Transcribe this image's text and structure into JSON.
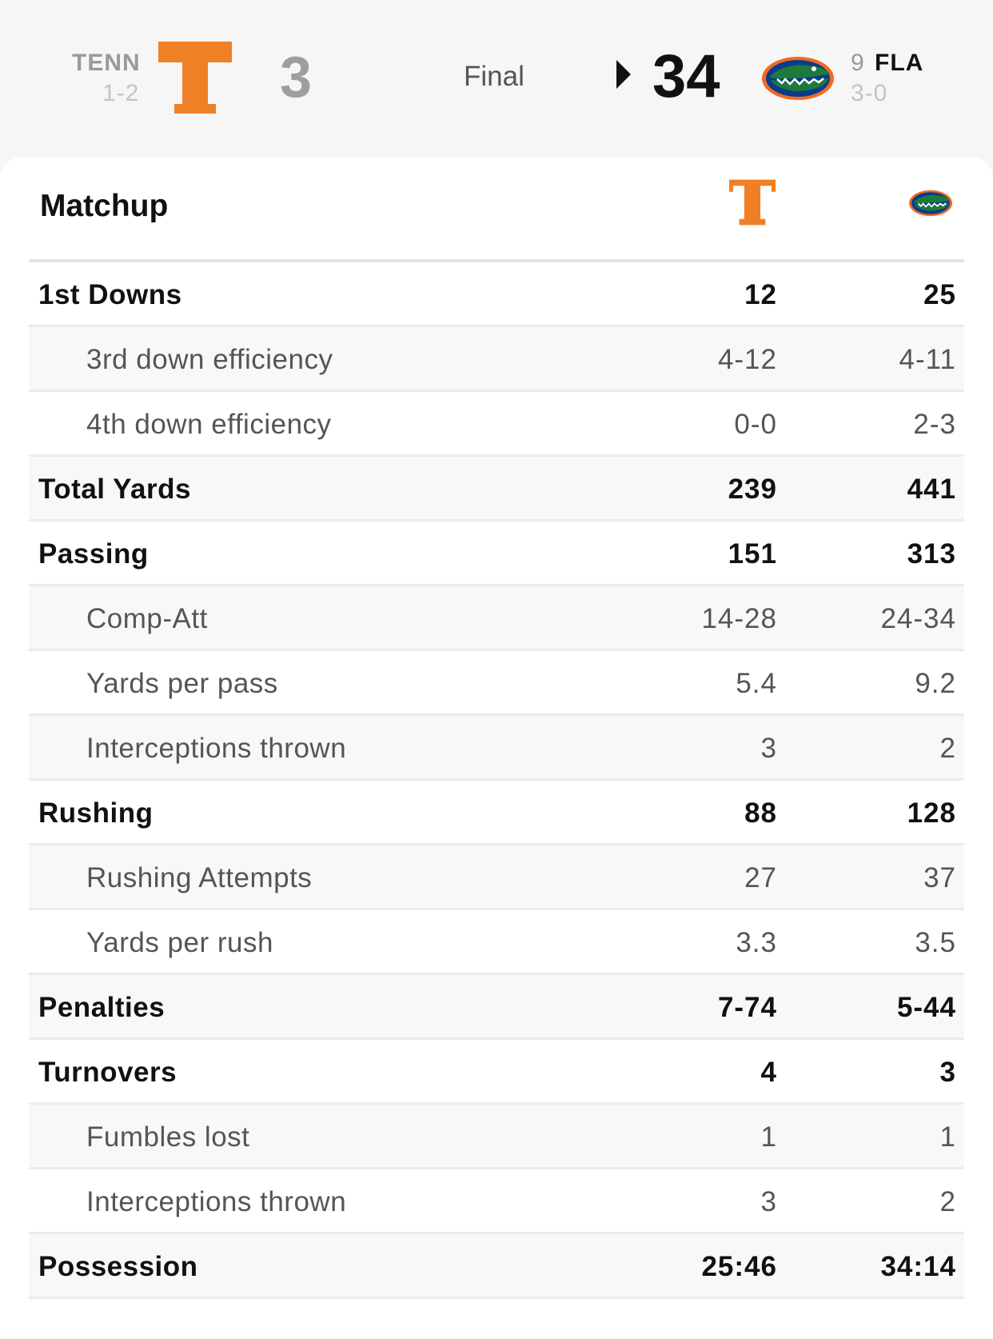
{
  "scoreboard": {
    "away": {
      "abbr": "TENN",
      "record": "1-2",
      "score": "3",
      "logo": "tennessee-t-logo",
      "color": "#F08025"
    },
    "home": {
      "rank": "9",
      "abbr": "FLA",
      "record": "3-0",
      "score": "34",
      "logo": "florida-gator-logo",
      "color": "#0B3C8C"
    },
    "status": "Final",
    "winner_indicator": "winner-arrow-icon"
  },
  "matchup": {
    "title": "Matchup",
    "rows": [
      {
        "label": "1st Downs",
        "away": "12",
        "home": "25",
        "type": "main"
      },
      {
        "label": "3rd down efficiency",
        "away": "4-12",
        "home": "4-11",
        "type": "sub"
      },
      {
        "label": "4th down efficiency",
        "away": "0-0",
        "home": "2-3",
        "type": "sub"
      },
      {
        "label": "Total Yards",
        "away": "239",
        "home": "441",
        "type": "main"
      },
      {
        "label": "Passing",
        "away": "151",
        "home": "313",
        "type": "main"
      },
      {
        "label": "Comp-Att",
        "away": "14-28",
        "home": "24-34",
        "type": "sub"
      },
      {
        "label": "Yards per pass",
        "away": "5.4",
        "home": "9.2",
        "type": "sub"
      },
      {
        "label": "Interceptions thrown",
        "away": "3",
        "home": "2",
        "type": "sub"
      },
      {
        "label": "Rushing",
        "away": "88",
        "home": "128",
        "type": "main"
      },
      {
        "label": "Rushing Attempts",
        "away": "27",
        "home": "37",
        "type": "sub"
      },
      {
        "label": "Yards per rush",
        "away": "3.3",
        "home": "3.5",
        "type": "sub"
      },
      {
        "label": "Penalties",
        "away": "7-74",
        "home": "5-44",
        "type": "main"
      },
      {
        "label": "Turnovers",
        "away": "4",
        "home": "3",
        "type": "main"
      },
      {
        "label": "Fumbles lost",
        "away": "1",
        "home": "1",
        "type": "sub"
      },
      {
        "label": "Interceptions thrown",
        "away": "3",
        "home": "2",
        "type": "sub"
      },
      {
        "label": "Possession",
        "away": "25:46",
        "home": "34:14",
        "type": "main"
      }
    ]
  }
}
